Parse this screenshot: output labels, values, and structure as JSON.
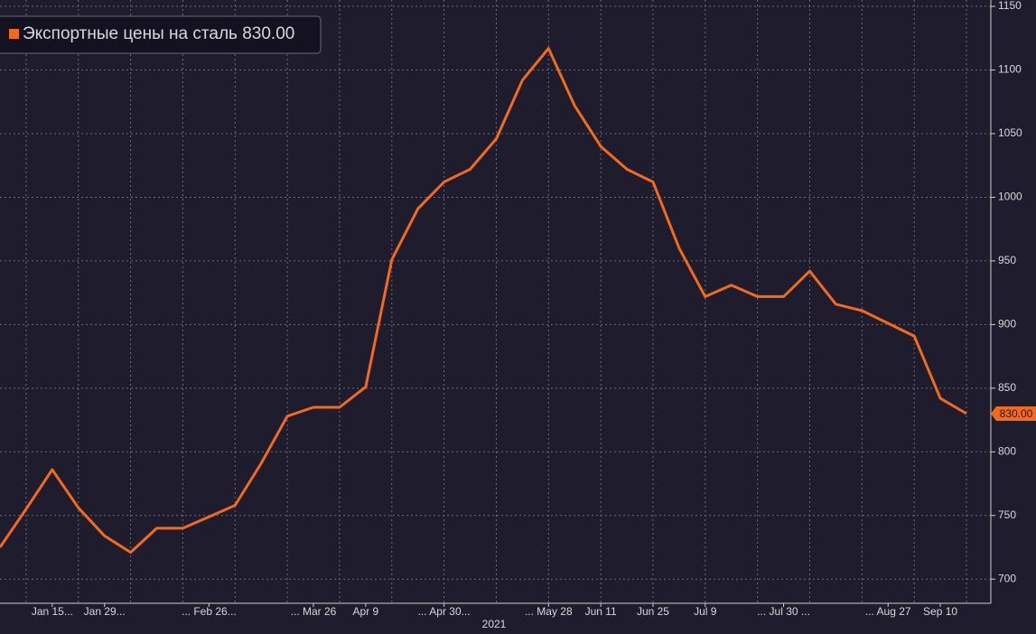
{
  "chart_data": {
    "type": "line",
    "categories": [
      null,
      null,
      "Jan 15...",
      null,
      "Jan 29...",
      null,
      null,
      null,
      "... Feb 26...",
      null,
      null,
      null,
      "... Mar 26",
      null,
      "Apr 9",
      null,
      null,
      "... Apr 30...",
      null,
      null,
      null,
      "... May 28",
      null,
      "Jun 11",
      null,
      "Jun 25",
      null,
      "Jul 9",
      null,
      null,
      "... Jul 30 ...",
      null,
      null,
      null,
      "... Aug 27",
      null,
      "Sep 10",
      null
    ],
    "x_axis_label": "2021",
    "series": [
      {
        "name": "Экспортные цены на сталь",
        "color": "#f26b1d",
        "values": [
          725,
          755,
          786,
          756,
          734,
          721,
          740,
          740,
          749,
          758,
          791,
          828,
          835,
          835,
          851,
          951,
          991,
          1012,
          1022,
          1046,
          1092,
          1117,
          1072,
          1040,
          1022,
          1012,
          960,
          922,
          931,
          922,
          922,
          942,
          916,
          911,
          901,
          891,
          842,
          830
        ],
        "value_labels": [
          null,
          null,
          null,
          null,
          null,
          null,
          null,
          null,
          null,
          null,
          null,
          null,
          null,
          null,
          null,
          null,
          null,
          null,
          null,
          null,
          null,
          null,
          null,
          null,
          null,
          null,
          null,
          null,
          null,
          null,
          null,
          null,
          null,
          null,
          null,
          null,
          null,
          "830.00"
        ]
      }
    ],
    "ylim": [
      681,
      1155
    ],
    "yticks": [
      700,
      750,
      800,
      850,
      900,
      950,
      1000,
      1050,
      1100,
      1150
    ],
    "grid": true,
    "legend": "top-left"
  }
}
